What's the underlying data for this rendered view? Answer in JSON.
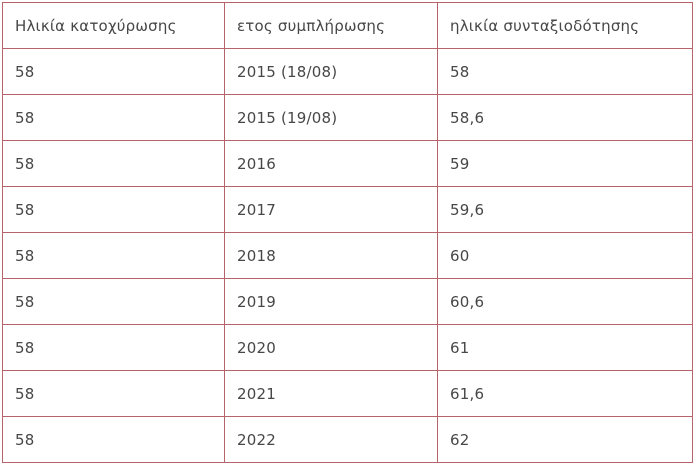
{
  "page": {
    "background": "#ffffff"
  },
  "table": {
    "description": "retirement-age-table",
    "columns": [
      "Ηλικία κατοχύρωσης",
      "ετος συμπλήρωσης",
      "ηλικία συνταξιοδότησης"
    ],
    "rows": [
      [
        "58",
        "2015 (18/08)",
        "58"
      ],
      [
        "58",
        "2015 (19/08)",
        "58,6"
      ],
      [
        "58",
        "2016",
        "59"
      ],
      [
        "58",
        "2017",
        "59,6"
      ],
      [
        "58",
        "2018",
        "60"
      ],
      [
        "58",
        "2019",
        "60,6"
      ],
      [
        "58",
        "2020",
        "61"
      ],
      [
        "58",
        "2021",
        "61,6"
      ],
      [
        "58",
        "2022",
        "62"
      ]
    ],
    "style": {
      "border_color": "#b5646c",
      "text_color": "#474747",
      "row_background": "#ffffff"
    }
  }
}
